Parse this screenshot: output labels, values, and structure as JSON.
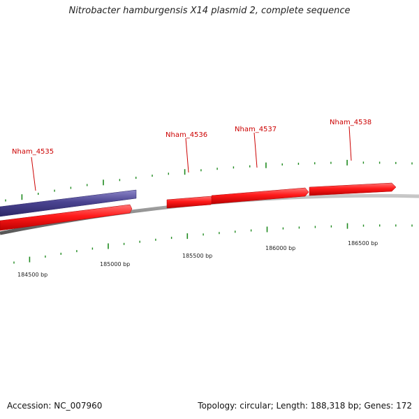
{
  "header": {
    "title": "Nitrobacter hamburgensis X14 plasmid 2, complete sequence"
  },
  "footer": {
    "accession": "Accession: NC_007960",
    "summary": "Topology: circular; Length: 188,318 bp; Genes: 172"
  },
  "colors": {
    "backbone": "#888888",
    "forward_gene": "#ff1a1a",
    "reverse_gene": "#4b4491",
    "tick": "#1f8a1f",
    "label": "#cc0000"
  },
  "genes": [
    {
      "name": "Nham_4535",
      "strand": "reverse"
    },
    {
      "name": "",
      "strand": "forward"
    },
    {
      "name": "Nham_4536",
      "strand": "forward"
    },
    {
      "name": "Nham_4537",
      "strand": "forward"
    },
    {
      "name": "Nham_4538",
      "strand": "forward"
    }
  ],
  "scale_labels": [
    "184500 bp",
    "185000 bp",
    "185500 bp",
    "186000 bp",
    "186500 bp"
  ]
}
